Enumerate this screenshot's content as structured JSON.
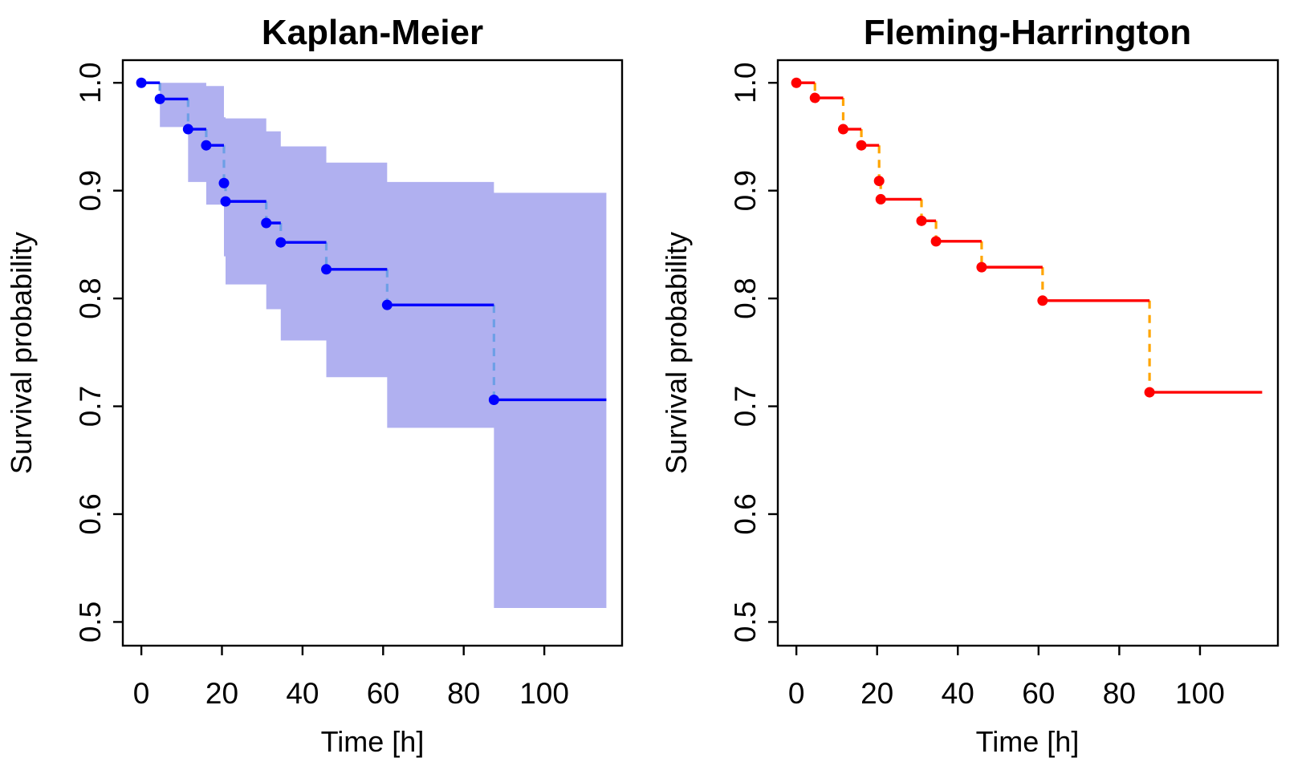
{
  "figure": {
    "background": "#ffffff",
    "axis_color": "#000000",
    "n_panels": 2
  },
  "chart_data": [
    {
      "type": "line",
      "subtype": "step-survival-curve",
      "title": "Kaplan-Meier",
      "xlabel": "Time [h]",
      "ylabel": "Survival probability",
      "xlim": [
        -4.6,
        119.3
      ],
      "ylim": [
        0.478,
        1.021
      ],
      "x_ticks": [
        0,
        20,
        40,
        60,
        80,
        100
      ],
      "x_tick_labels": [
        "0",
        "20",
        "40",
        "60",
        "80",
        "100"
      ],
      "y_ticks": [
        1.0,
        0.9,
        0.8,
        0.7,
        0.6,
        0.5
      ],
      "y_tick_labels": [
        "1.0",
        "0.9",
        "0.8",
        "0.7",
        "0.6",
        "0.5"
      ],
      "grid": false,
      "legend": null,
      "event_times": [
        0,
        4.6,
        11.6,
        16.1,
        20.5,
        20.9,
        31.0,
        34.6,
        45.9,
        61.0,
        87.5
      ],
      "survival": [
        1.0,
        0.985,
        0.957,
        0.942,
        0.907,
        0.89,
        0.87,
        0.852,
        0.827,
        0.794,
        0.706
      ],
      "ci_upper": [
        1.0,
        1.0,
        1.0,
        0.997,
        0.968,
        0.967,
        0.955,
        0.941,
        0.926,
        0.908,
        0.898
      ],
      "ci_lower": [
        1.0,
        0.959,
        0.908,
        0.887,
        0.839,
        0.813,
        0.79,
        0.761,
        0.727,
        0.68,
        0.513
      ],
      "t_end": 115.4,
      "colors": {
        "line": "#0000ff",
        "point": "#0000ff",
        "drop_dash": "#6d9fe6",
        "ci_band": "#b0b0f0"
      }
    },
    {
      "type": "line",
      "subtype": "step-survival-curve",
      "title": "Fleming-Harrington",
      "xlabel": "Time [h]",
      "ylabel": "Survival probability",
      "xlim": [
        -4.6,
        119.3
      ],
      "ylim": [
        0.478,
        1.021
      ],
      "x_ticks": [
        0,
        20,
        40,
        60,
        80,
        100
      ],
      "x_tick_labels": [
        "0",
        "20",
        "40",
        "60",
        "80",
        "100"
      ],
      "y_ticks": [
        1.0,
        0.9,
        0.8,
        0.7,
        0.6,
        0.5
      ],
      "y_tick_labels": [
        "1.0",
        "0.9",
        "0.8",
        "0.7",
        "0.6",
        "0.5"
      ],
      "grid": false,
      "legend": null,
      "event_times": [
        0,
        4.6,
        11.6,
        16.1,
        20.5,
        20.9,
        31.0,
        34.6,
        45.9,
        61.0,
        87.5
      ],
      "survival": [
        1.0,
        0.986,
        0.957,
        0.942,
        0.909,
        0.892,
        0.872,
        0.853,
        0.829,
        0.798,
        0.713
      ],
      "ci_upper": null,
      "ci_lower": null,
      "t_end": 115.4,
      "colors": {
        "line": "#ff0000",
        "point": "#ff0000",
        "drop_dash": "#ffa500",
        "ci_band": null
      }
    }
  ]
}
